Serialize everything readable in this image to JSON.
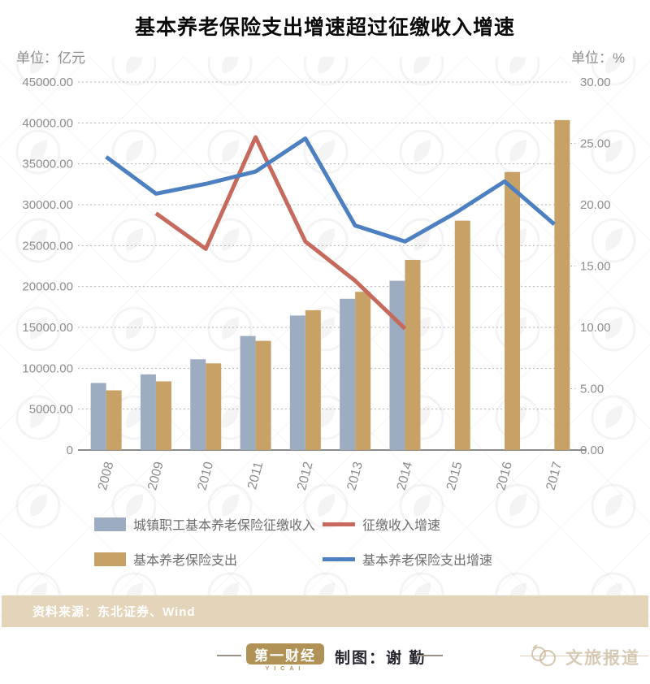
{
  "title": "基本养老保险支出增速超过征缴收入增速",
  "chart_data": {
    "type": "combo bar+line, dual axis",
    "categories": [
      "2008",
      "2009",
      "2010",
      "2011",
      "2012",
      "2013",
      "2014",
      "2015",
      "2016",
      "2017"
    ],
    "bars": [
      {
        "name": "城镇职工基本养老保险征缴收入",
        "color": "#9cadc1",
        "axis": "left",
        "values": [
          8200,
          9250,
          11100,
          13950,
          16450,
          18500,
          20700,
          null,
          null,
          null
        ]
      },
      {
        "name": "基本养老保险支出",
        "color": "#c7a166",
        "axis": "left",
        "values": [
          7300,
          8400,
          10600,
          13350,
          17100,
          19350,
          23250,
          28050,
          34000,
          40350
        ]
      }
    ],
    "lines": [
      {
        "name": "征缴收入增速",
        "color": "#c76a5e",
        "axis": "right",
        "values": [
          null,
          19.3,
          16.4,
          25.5,
          17.0,
          13.8,
          9.9,
          null,
          null,
          null
        ]
      },
      {
        "name": "基本养老保险支出增速",
        "color": "#4d80c0",
        "axis": "right",
        "values": [
          23.9,
          20.9,
          21.7,
          22.7,
          25.4,
          18.3,
          17.0,
          19.3,
          21.9,
          18.4
        ]
      }
    ],
    "left_axis": {
      "unit_label": "单位：亿元",
      "max": 45000,
      "ticks": [
        "45000.00",
        "40000.00",
        "35000.00",
        "30000.00",
        "25000.00",
        "20000.00",
        "15000.00",
        "10000.00",
        "5000.00",
        "0"
      ]
    },
    "right_axis": {
      "unit_label": "单位：%",
      "max": 30,
      "ticks": [
        "30.00",
        "25.00",
        "20.00",
        "15.00",
        "10.00",
        "5.00",
        "0.00"
      ]
    },
    "grid": "dotted horizontal gridlines, legend below chart"
  },
  "source_note": "资料来源：东北证券、Wind",
  "footer": {
    "logo_text": "第一财经",
    "logo_subtext": "YICAI",
    "logo_color": "#b09156",
    "credit": "制图：谢 勤",
    "watermark": "文旅报道"
  }
}
